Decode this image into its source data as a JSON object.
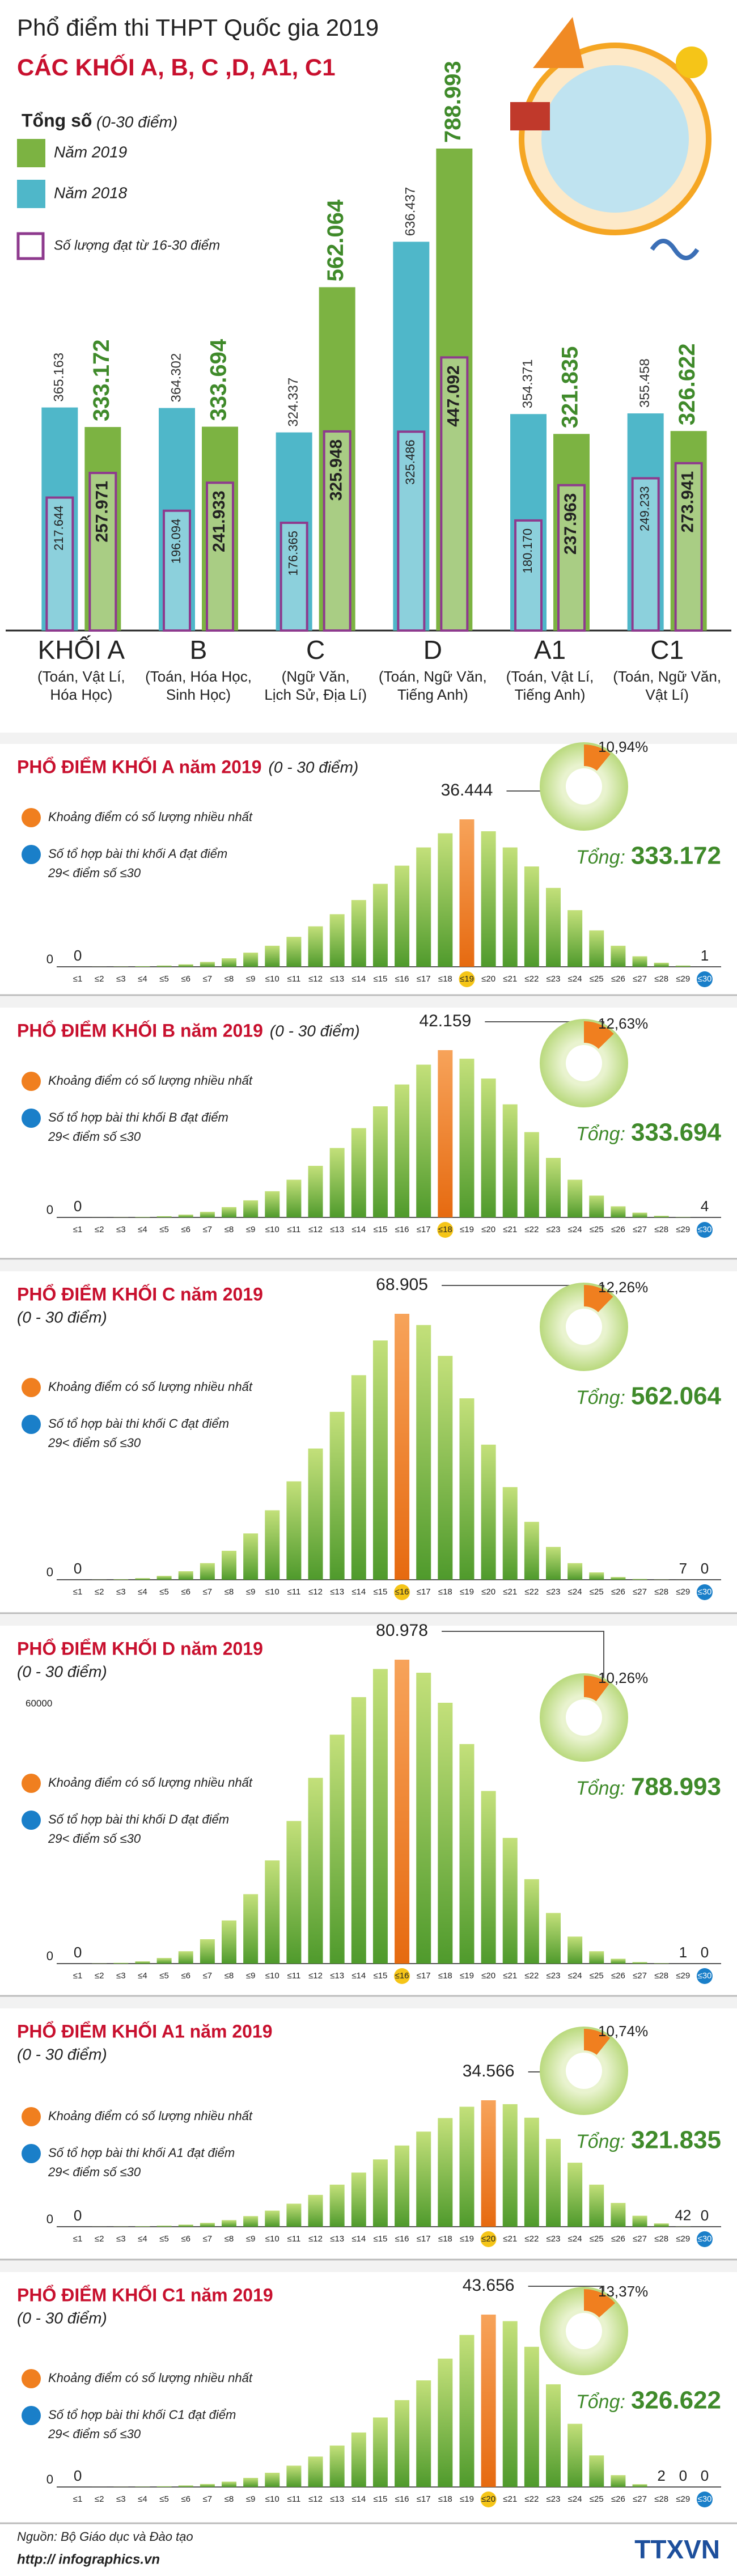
{
  "chart_data": [
    {
      "type": "grouped_bar",
      "title": "Phổ điểm thi THPT Quốc gia 2019",
      "subtitle": "CÁC KHỐI A, B, C ,D, A1, C1",
      "legend_title": "Tổng số",
      "legend_note": "(0-30 điểm)",
      "categories": [
        "KHỐI A",
        "B",
        "C",
        "D",
        "A1",
        "C1"
      ],
      "category_notes": [
        [
          "(Toán, Vật Lí,",
          "Hóa Học)"
        ],
        [
          "(Toán, Hóa Học,",
          "Sinh Học)"
        ],
        [
          "(Ngữ Văn,",
          "Lịch Sử, Địa Lí)"
        ],
        [
          "(Toán, Ngữ Văn,",
          "Tiếng Anh)"
        ],
        [
          "(Toán, Vật Lí,",
          "Tiếng Anh)"
        ],
        [
          "(Toán, Ngữ Văn,",
          "Vật Lí)"
        ]
      ],
      "series": [
        {
          "name": "Năm 2019",
          "color": "#7cb342",
          "values": [
            333172,
            333694,
            562064,
            788993,
            321835,
            326622
          ],
          "value_labels": [
            "333.172",
            "333.694",
            "562.064",
            "788.993",
            "321.835",
            "326.622"
          ],
          "sub_values": [
            257971,
            241933,
            325948,
            447092,
            237963,
            273941
          ],
          "sub_value_labels": [
            "257.971",
            "241.933",
            "325.948",
            "447.092",
            "237.963",
            "273.941"
          ]
        },
        {
          "name": "Năm 2018",
          "color": "#4fb7c9",
          "values": [
            365163,
            364302,
            324337,
            636437,
            354371,
            355458
          ],
          "value_labels": [
            "365.163",
            "364.302",
            "324.337",
            "636.437",
            "354.371",
            "355.458"
          ],
          "sub_values": [
            217644,
            196094,
            176365,
            325486,
            180170,
            249233
          ],
          "sub_value_labels": [
            "217.644",
            "196.094",
            "176.365",
            "325.486",
            "180.170",
            "249.233"
          ]
        }
      ],
      "sub_name": "Số lượng đạt từ 16-30 điểm",
      "sub_color": "#8e3a8e"
    },
    {
      "type": "bar",
      "title": "PHỔ ĐIỂM KHỐI A năm 2019",
      "subtitle": "(0 - 30 điểm)",
      "categories": [
        "≤1",
        "≤2",
        "≤3",
        "≤4",
        "≤5",
        "≤6",
        "≤7",
        "≤8",
        "≤9",
        "≤10",
        "≤11",
        "≤12",
        "≤13",
        "≤14",
        "≤15",
        "≤16",
        "≤17",
        "≤18",
        "≤19",
        "≤20",
        "≤21",
        "≤22",
        "≤23",
        "≤24",
        "≤25",
        "≤26",
        "≤27",
        "≤28",
        "≤29",
        "≤30"
      ],
      "values": [
        0,
        20,
        60,
        150,
        300,
        600,
        1200,
        2100,
        3500,
        5200,
        7400,
        10000,
        13000,
        16500,
        20500,
        25000,
        29500,
        33000,
        36444,
        33500,
        29500,
        24800,
        19500,
        14000,
        9000,
        5200,
        2600,
        1000,
        300,
        1
      ],
      "value_labels": [
        "0",
        null,
        null,
        null,
        null,
        null,
        null,
        null,
        null,
        null,
        null,
        null,
        null,
        null,
        null,
        null,
        null,
        null,
        "36.444",
        null,
        null,
        null,
        null,
        null,
        null,
        null,
        null,
        null,
        null,
        "1"
      ],
      "yticks": [
        0
      ],
      "color": "#7cb342",
      "peak_color": "#f07f1f",
      "legend": [
        {
          "color": "#f07f1f",
          "lines": [
            "Khoảng điểm có số lượng nhiều nhất"
          ]
        },
        {
          "color": "#1a7fc9",
          "lines": [
            "Số tổ hợp bài thi khối A đạt điểm",
            "29< điểm số ≤30"
          ]
        }
      ],
      "share": 10.94,
      "share_label": "10,94%",
      "total_prefix": "Tổng:",
      "total": 333172,
      "total_label": "333.172"
    },
    {
      "type": "bar",
      "title": "PHỔ ĐIỂM KHỐI B năm 2019",
      "subtitle": "(0 - 30 điểm)",
      "categories": [
        "≤1",
        "≤2",
        "≤3",
        "≤4",
        "≤5",
        "≤6",
        "≤7",
        "≤8",
        "≤9",
        "≤10",
        "≤11",
        "≤12",
        "≤13",
        "≤14",
        "≤15",
        "≤16",
        "≤17",
        "≤18",
        "≤19",
        "≤20",
        "≤21",
        "≤22",
        "≤23",
        "≤24",
        "≤25",
        "≤26",
        "≤27",
        "≤28",
        "≤29",
        "≤30"
      ],
      "values": [
        0,
        10,
        40,
        120,
        300,
        700,
        1400,
        2600,
        4300,
        6600,
        9500,
        13000,
        17500,
        22500,
        28000,
        33500,
        38500,
        42159,
        40000,
        35000,
        28500,
        21500,
        15000,
        9500,
        5500,
        2800,
        1200,
        400,
        80,
        4
      ],
      "value_labels": [
        "0",
        null,
        null,
        null,
        null,
        null,
        null,
        null,
        null,
        null,
        null,
        null,
        null,
        null,
        null,
        null,
        null,
        "42.159",
        null,
        null,
        null,
        null,
        null,
        null,
        null,
        null,
        null,
        null,
        null,
        "4"
      ],
      "yticks": [
        0
      ],
      "color": "#7cb342",
      "peak_color": "#f07f1f",
      "legend": [
        {
          "color": "#f07f1f",
          "lines": [
            "Khoảng điểm có số lượng nhiều nhất"
          ]
        },
        {
          "color": "#1a7fc9",
          "lines": [
            "Số tổ hợp bài thi khối B đạt điểm",
            "29< điểm số ≤30"
          ]
        }
      ],
      "share": 12.63,
      "share_label": "12,63%",
      "total_prefix": "Tổng:",
      "total": 333694,
      "total_label": "333.694"
    },
    {
      "type": "bar",
      "title": "PHỔ ĐIỂM KHỐI C năm 2019",
      "subtitle": "(0 - 30 điểm)",
      "categories": [
        "≤1",
        "≤2",
        "≤3",
        "≤4",
        "≤5",
        "≤6",
        "≤7",
        "≤8",
        "≤9",
        "≤10",
        "≤11",
        "≤12",
        "≤13",
        "≤14",
        "≤15",
        "≤16",
        "≤17",
        "≤18",
        "≤19",
        "≤20",
        "≤21",
        "≤22",
        "≤23",
        "≤24",
        "≤25",
        "≤26",
        "≤27",
        "≤28",
        "≤29",
        "≤30"
      ],
      "values": [
        0,
        30,
        120,
        400,
        1000,
        2200,
        4300,
        7500,
        12000,
        18000,
        25500,
        34000,
        43500,
        53000,
        62000,
        68905,
        66000,
        58000,
        47000,
        35000,
        24000,
        15000,
        8500,
        4300,
        1900,
        700,
        200,
        50,
        7,
        0
      ],
      "value_labels": [
        "0",
        null,
        null,
        null,
        null,
        null,
        null,
        null,
        null,
        null,
        null,
        null,
        null,
        null,
        null,
        "68.905",
        null,
        null,
        null,
        null,
        null,
        null,
        null,
        null,
        null,
        null,
        null,
        null,
        "7",
        "0"
      ],
      "yticks": [
        0
      ],
      "color": "#7cb342",
      "peak_color": "#f07f1f",
      "legend": [
        {
          "color": "#f07f1f",
          "lines": [
            "Khoảng điểm có số lượng nhiều nhất"
          ]
        },
        {
          "color": "#1a7fc9",
          "lines": [
            "Số tổ hợp bài thi khối C đạt điểm",
            "29< điểm số ≤30"
          ]
        }
      ],
      "share": 12.26,
      "share_label": "12,26%",
      "total_prefix": "Tổng:",
      "total": 562064,
      "total_label": "562.064"
    },
    {
      "type": "bar",
      "title": "PHỔ ĐIỂM KHỐI D năm 2019",
      "subtitle": "(0 - 30 điểm)",
      "annotation": "60000",
      "categories": [
        "≤1",
        "≤2",
        "≤3",
        "≤4",
        "≤5",
        "≤6",
        "≤7",
        "≤8",
        "≤9",
        "≤10",
        "≤11",
        "≤12",
        "≤13",
        "≤14",
        "≤15",
        "≤16",
        "≤17",
        "≤18",
        "≤19",
        "≤20",
        "≤21",
        "≤22",
        "≤23",
        "≤24",
        "≤25",
        "≤26",
        "≤27",
        "≤28",
        "≤29",
        "≤30"
      ],
      "values": [
        0,
        50,
        200,
        600,
        1500,
        3300,
        6500,
        11500,
        18500,
        27500,
        38000,
        49500,
        61000,
        71000,
        78500,
        80978,
        77500,
        69500,
        58500,
        46000,
        33500,
        22500,
        13500,
        7200,
        3300,
        1300,
        400,
        100,
        1,
        0
      ],
      "value_labels": [
        "0",
        null,
        null,
        null,
        null,
        null,
        null,
        null,
        null,
        null,
        null,
        null,
        null,
        null,
        null,
        "80.978",
        null,
        null,
        null,
        null,
        null,
        null,
        null,
        null,
        null,
        null,
        null,
        null,
        "1",
        "0"
      ],
      "yticks": [
        0
      ],
      "color": "#7cb342",
      "peak_color": "#f07f1f",
      "legend": [
        {
          "color": "#f07f1f",
          "lines": [
            "Khoảng điểm có số lượng nhiều nhất"
          ]
        },
        {
          "color": "#1a7fc9",
          "lines": [
            "Số tổ hợp bài thi khối D đạt điểm",
            "29< điểm số ≤30"
          ]
        }
      ],
      "share": 10.26,
      "share_label": "10,26%",
      "total_prefix": "Tổng:",
      "total": 788993,
      "total_label": "788.993"
    },
    {
      "type": "bar",
      "title": "PHỔ ĐIỂM KHỐI A1 năm 2019",
      "subtitle": "(0 - 30 điểm)",
      "categories": [
        "≤1",
        "≤2",
        "≤3",
        "≤4",
        "≤5",
        "≤6",
        "≤7",
        "≤8",
        "≤9",
        "≤10",
        "≤11",
        "≤12",
        "≤13",
        "≤14",
        "≤15",
        "≤16",
        "≤17",
        "≤18",
        "≤19",
        "≤20",
        "≤21",
        "≤22",
        "≤23",
        "≤24",
        "≤25",
        "≤26",
        "≤27",
        "≤28",
        "≤29",
        "≤30"
      ],
      "values": [
        0,
        20,
        50,
        130,
        280,
        560,
        1050,
        1800,
        2900,
        4400,
        6300,
        8700,
        11500,
        14800,
        18400,
        22200,
        26000,
        29700,
        32800,
        34566,
        33500,
        29800,
        24000,
        17500,
        11500,
        6500,
        3000,
        900,
        42,
        0
      ],
      "value_labels": [
        "0",
        null,
        null,
        null,
        null,
        null,
        null,
        null,
        null,
        null,
        null,
        null,
        null,
        null,
        null,
        null,
        null,
        null,
        null,
        "34.566",
        null,
        null,
        null,
        null,
        null,
        null,
        null,
        null,
        "42",
        "0"
      ],
      "yticks": [
        0
      ],
      "color": "#7cb342",
      "peak_color": "#f07f1f",
      "legend": [
        {
          "color": "#f07f1f",
          "lines": [
            "Khoảng điểm có số lượng nhiều nhất"
          ]
        },
        {
          "color": "#1a7fc9",
          "lines": [
            "Số tổ hợp bài thi khối A1 đạt điểm",
            "29< điểm số ≤30"
          ]
        }
      ],
      "share": 10.74,
      "share_label": "10,74%",
      "total_prefix": "Tổng:",
      "total": 321835,
      "total_label": "321.835"
    },
    {
      "type": "bar",
      "title": "PHỔ ĐIỂM KHỐI C1 năm 2019",
      "subtitle": "(0 - 30 điểm)",
      "categories": [
        "≤1",
        "≤2",
        "≤3",
        "≤4",
        "≤5",
        "≤6",
        "≤7",
        "≤8",
        "≤9",
        "≤10",
        "≤11",
        "≤12",
        "≤13",
        "≤14",
        "≤15",
        "≤16",
        "≤17",
        "≤18",
        "≤19",
        "≤20",
        "≤21",
        "≤22",
        "≤23",
        "≤24",
        "≤25",
        "≤26",
        "≤27",
        "≤28",
        "≤29",
        "≤30"
      ],
      "values": [
        0,
        10,
        30,
        80,
        180,
        380,
        750,
        1350,
        2300,
        3600,
        5400,
        7700,
        10500,
        13800,
        17600,
        22000,
        27000,
        32500,
        38500,
        43656,
        42000,
        35500,
        26000,
        16000,
        8000,
        3000,
        700,
        2,
        0,
        0
      ],
      "value_labels": [
        "0",
        null,
        null,
        null,
        null,
        null,
        null,
        null,
        null,
        null,
        null,
        null,
        null,
        null,
        null,
        null,
        null,
        null,
        null,
        "43.656",
        null,
        null,
        null,
        null,
        null,
        null,
        null,
        "2",
        "0",
        "0"
      ],
      "yticks": [
        0
      ],
      "color": "#7cb342",
      "peak_color": "#f07f1f",
      "legend": [
        {
          "color": "#f07f1f",
          "lines": [
            "Khoảng điểm có số lượng nhiều nhất"
          ]
        },
        {
          "color": "#1a7fc9",
          "lines": [
            "Số tổ hợp bài thi khối C1 đạt điểm",
            "29< điểm số ≤30"
          ]
        }
      ],
      "share": 13.37,
      "share_label": "13,37%",
      "total_prefix": "Tổng:",
      "total": 326622,
      "total_label": "326.622"
    }
  ],
  "footer": {
    "source": "Nguồn: Bộ Giáo dục và Đào tạo",
    "url": "http:// infographics.vn",
    "logo": "TTXVN"
  }
}
